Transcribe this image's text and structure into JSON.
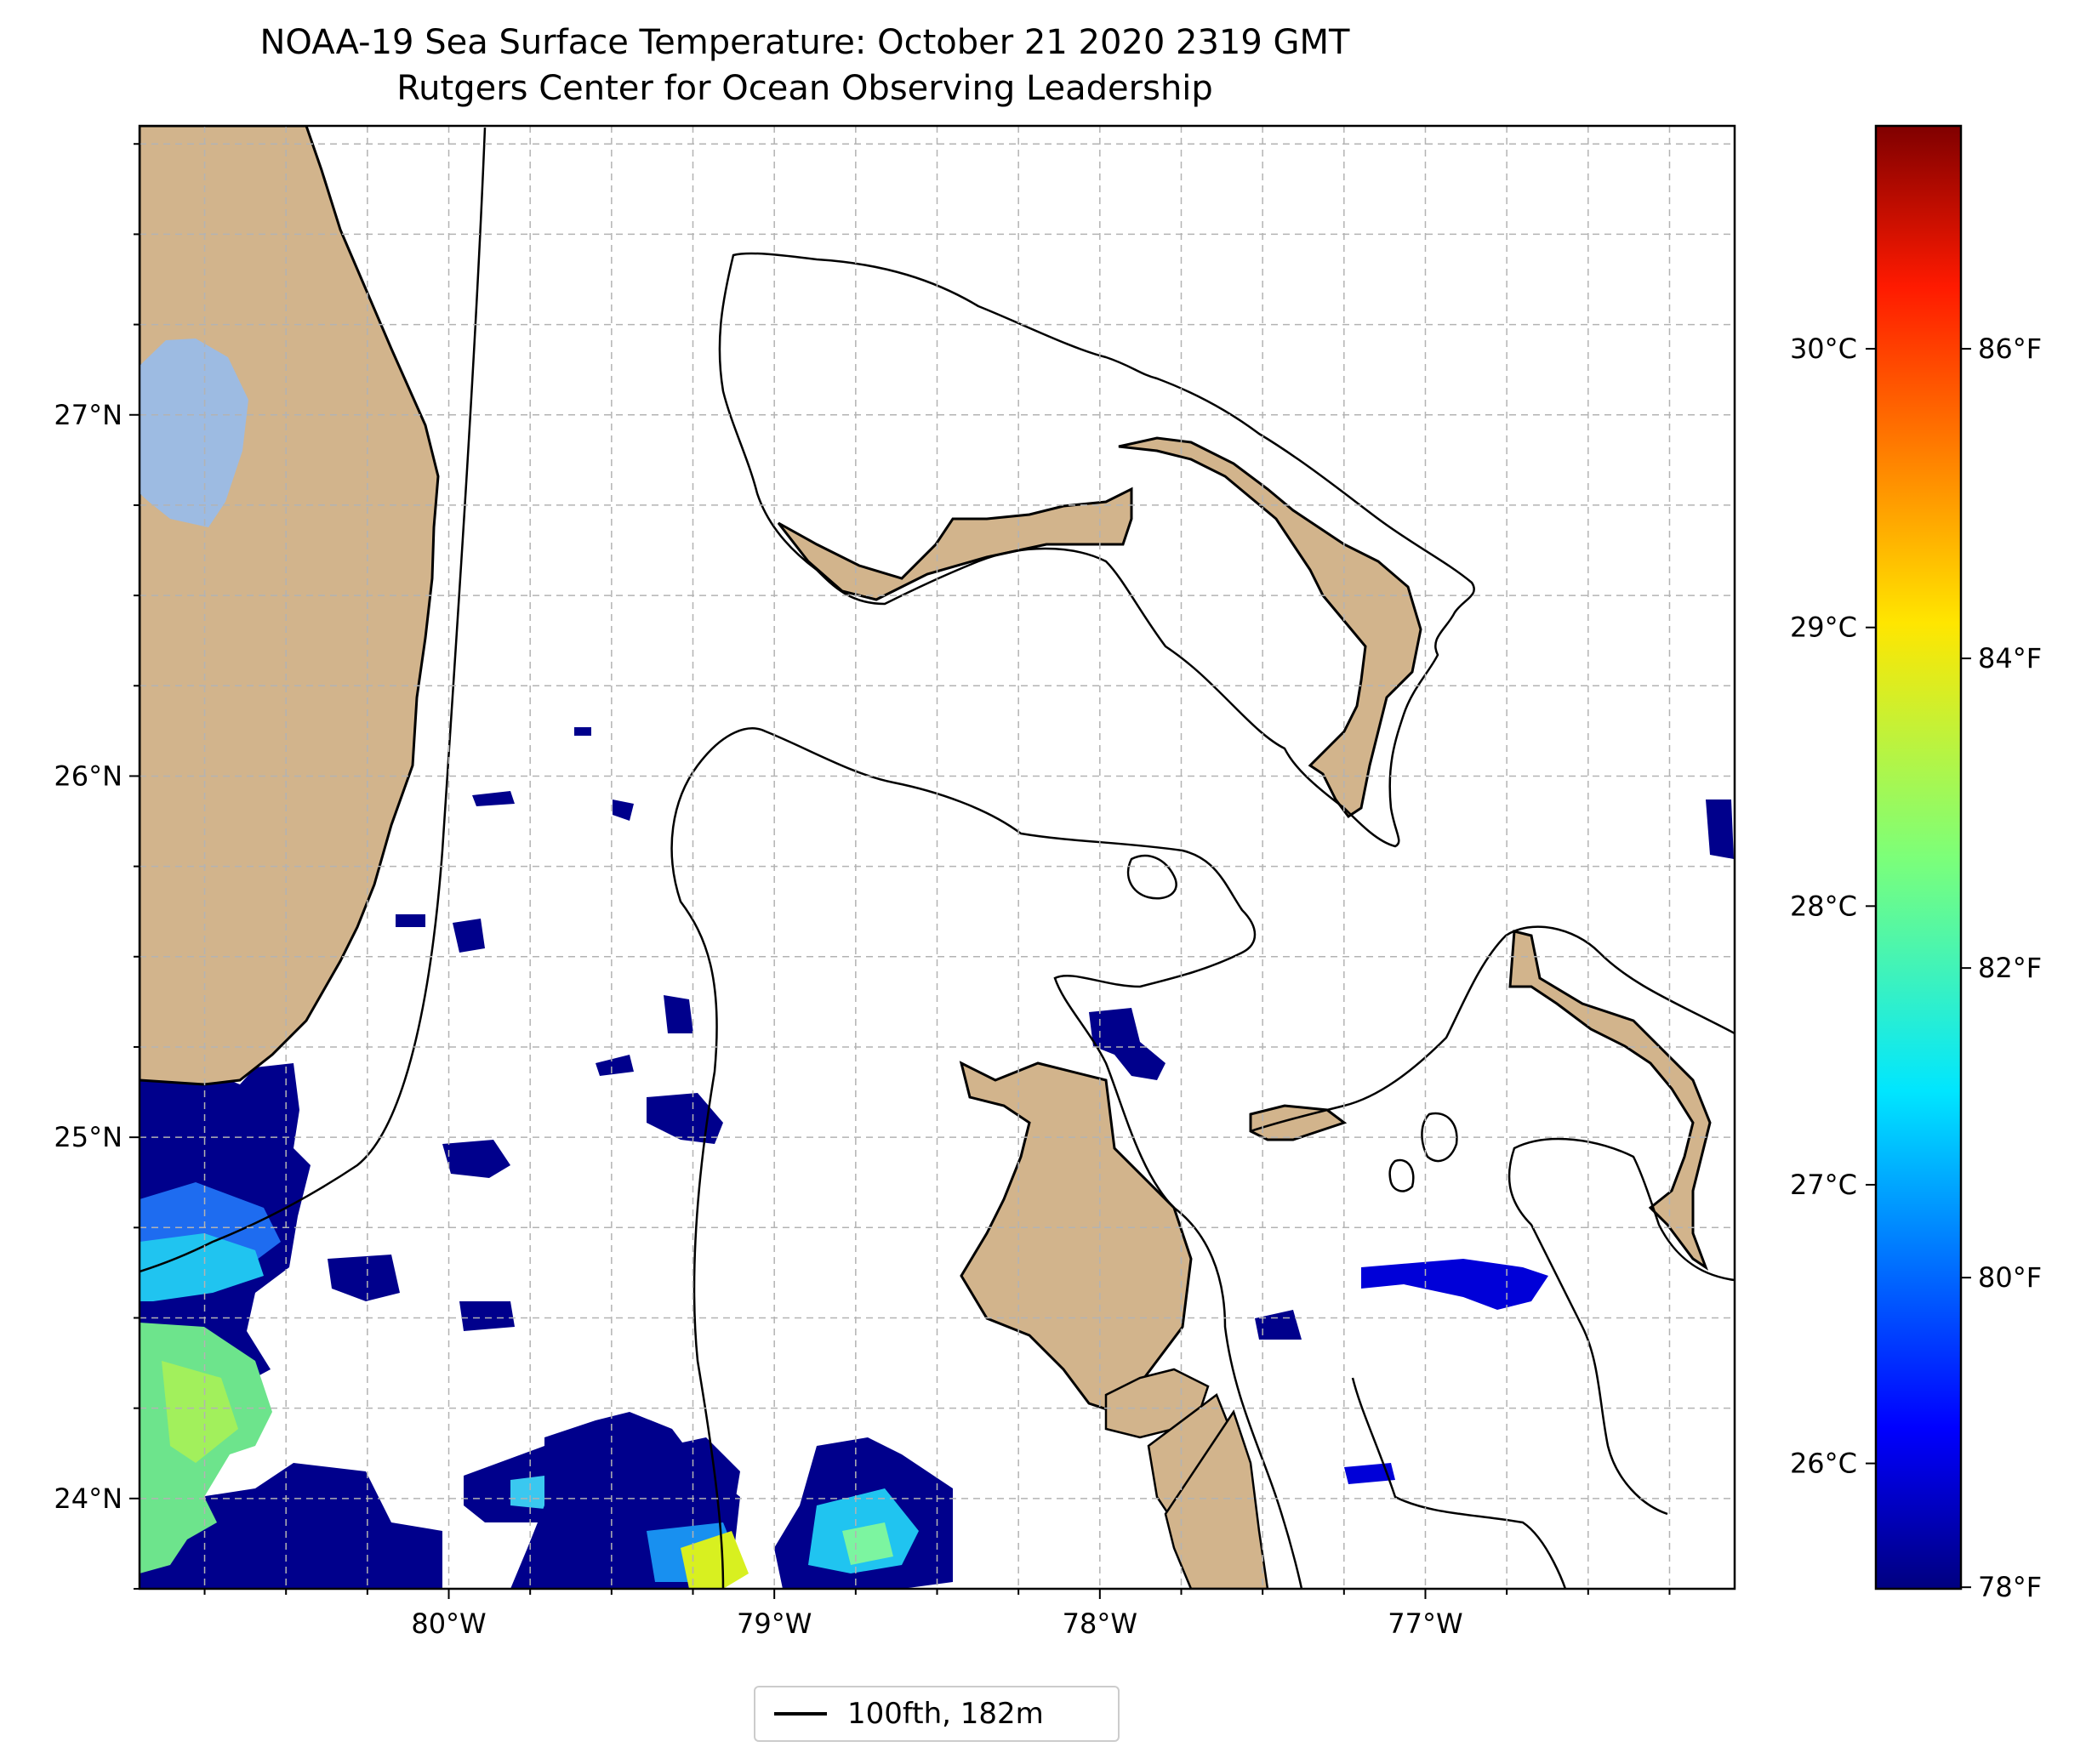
{
  "title": {
    "line1": "NOAA-19 Sea Surface Temperature: October 21 2020 2319 GMT",
    "line2": "Rutgers Center for Ocean Observing Leadership"
  },
  "map": {
    "lon_range": [
      -80.95,
      -76.05
    ],
    "lat_range": [
      23.75,
      27.8
    ],
    "gridlines": true,
    "lon_ticks": [
      -80,
      -79,
      -78,
      -77
    ],
    "lon_tick_labels": [
      "80°W",
      "79°W",
      "78°W",
      "77°W"
    ],
    "lat_ticks": [
      24,
      25,
      26,
      27
    ],
    "lat_tick_labels": [
      "24°N",
      "25°N",
      "26°N",
      "27°N"
    ],
    "land_color": "#d2b48c",
    "lake_color": "#9dbbe2",
    "contour_color": "#000000"
  },
  "legend": {
    "label": "100fth, 182m",
    "placement": "bottom-center"
  },
  "colorbar": {
    "colormap": "jet",
    "celsius_range": [
      25.55,
      30.8
    ],
    "celsius_ticks": [
      26,
      27,
      28,
      29,
      30
    ],
    "celsius_labels": [
      "26°C",
      "27°C",
      "28°C",
      "29°C",
      "30°C"
    ],
    "fahrenheit_ticks": [
      78,
      80,
      82,
      84,
      86
    ],
    "fahrenheit_labels": [
      "78°F",
      "80°F",
      "82°F",
      "84°F",
      "86°F"
    ]
  }
}
